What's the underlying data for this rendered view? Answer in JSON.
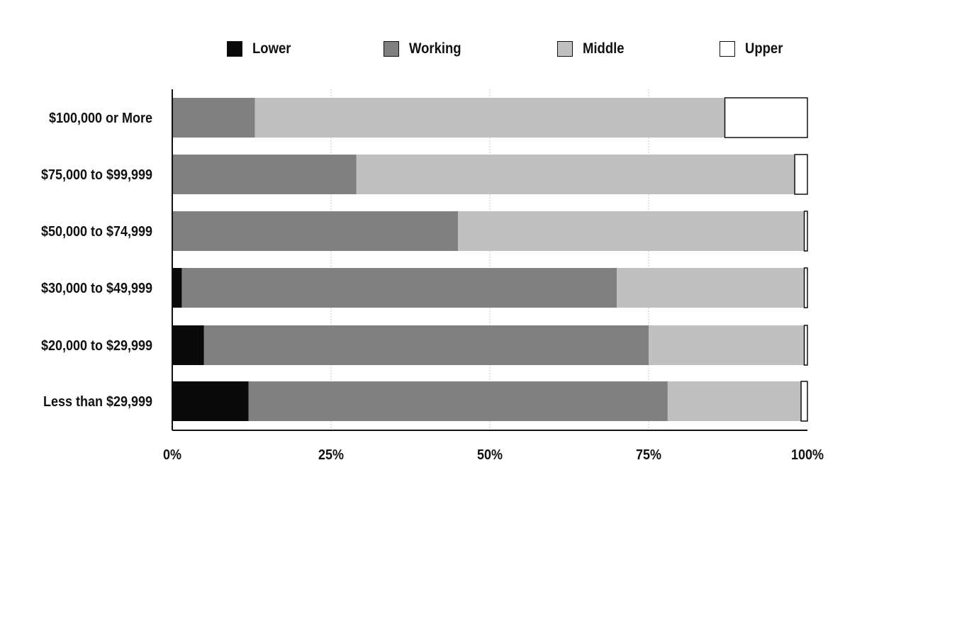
{
  "chart_data": {
    "type": "bar",
    "orientation": "horizontal",
    "stacked": true,
    "title": "",
    "xlabel": "",
    "ylabel": "",
    "xlim": [
      0,
      100
    ],
    "x_ticks": [
      "0%",
      "25%",
      "50%",
      "75%",
      "100%"
    ],
    "grid": "vertical dashed",
    "legend_position": "top",
    "categories": [
      "$100,000 or More",
      "$75,000 to $99,999",
      "$50,000 to $74,999",
      "$30,000 to $49,999",
      "$20,000 to $29,999",
      "Less than $29,999"
    ],
    "series": [
      {
        "name": "Lower",
        "color": "#0a0a0a",
        "values": [
          0,
          0,
          0,
          1.5,
          5,
          12
        ]
      },
      {
        "name": "Working",
        "color": "#808080",
        "values": [
          13,
          29,
          45,
          68.5,
          70,
          66
        ]
      },
      {
        "name": "Middle",
        "color": "#c0c0c0",
        "values": [
          74,
          69,
          54.5,
          29.5,
          24.5,
          21
        ]
      },
      {
        "name": "Upper",
        "color": "#ffffff",
        "values": [
          13,
          2,
          0.5,
          0.5,
          0.5,
          1
        ]
      }
    ]
  }
}
